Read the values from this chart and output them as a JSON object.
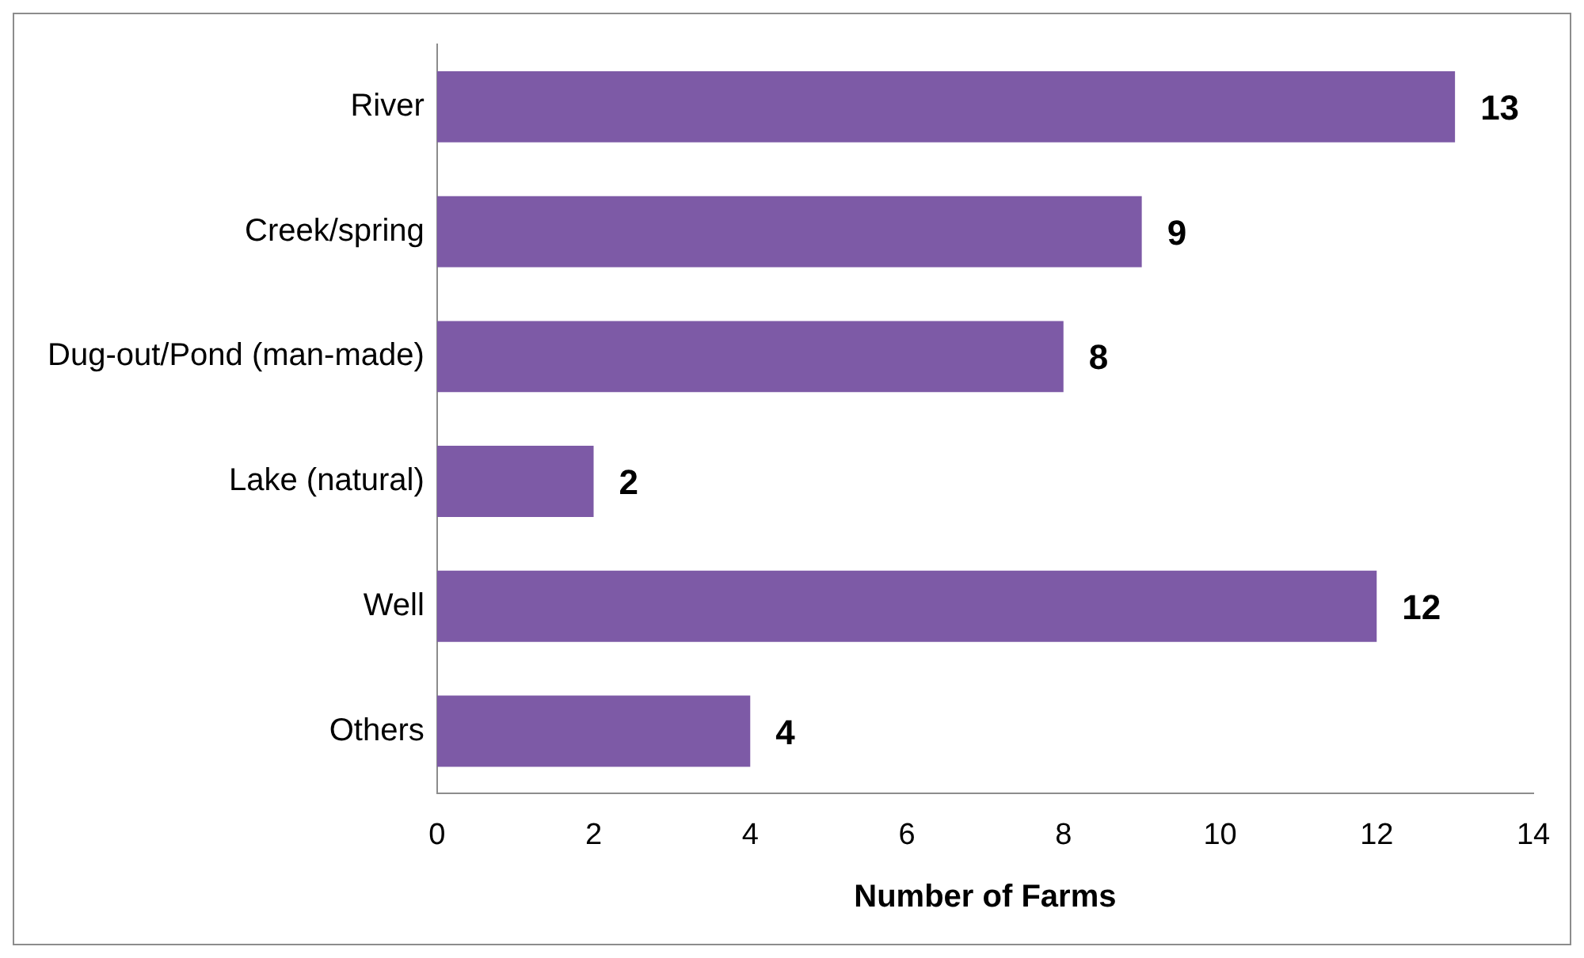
{
  "chart_data": {
    "type": "bar",
    "orientation": "horizontal",
    "xlabel": "Number of Farms",
    "categories": [
      "River",
      "Creek/spring",
      "Dug-out/Pond (man-made)",
      "Lake (natural)",
      "Well",
      "Others"
    ],
    "values": [
      13,
      9,
      8,
      2,
      12,
      4
    ],
    "color": "#7d5aa6",
    "xlim": [
      0,
      14
    ],
    "xticks": [
      0,
      2,
      4,
      6,
      8,
      10,
      12,
      14
    ],
    "grid": false,
    "data_labels": true
  }
}
